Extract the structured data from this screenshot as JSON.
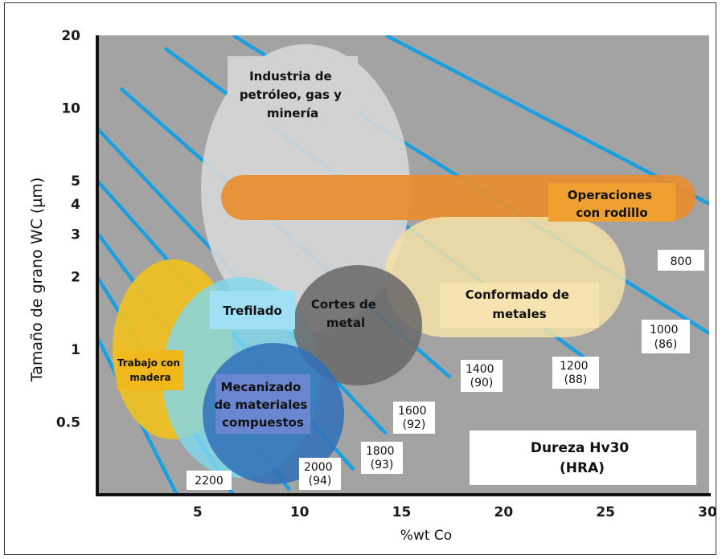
{
  "chart_data": {
    "type": "scatter",
    "xlabel": "%wt Co",
    "ylabel": "Tamaño de grano WC (µm)",
    "y_scale": "log",
    "xlim": [
      0,
      30
    ],
    "ylim": [
      0.25,
      20
    ],
    "x_ticks": [
      "5",
      "10",
      "15",
      "20",
      "25",
      "30"
    ],
    "x_tick_values": [
      5,
      10,
      15,
      20,
      25,
      30
    ],
    "y_ticks": [
      "20",
      "10",
      "5",
      "4",
      "3",
      "2",
      "1",
      "0.5"
    ],
    "y_tick_values": [
      20,
      10,
      5,
      4,
      3,
      2,
      1,
      0.5
    ],
    "legend_lines": [
      "Dureza Hv30",
      "(HRA)"
    ],
    "regions": [
      {
        "label_lines": [
          "Industria de",
          "petróleo, gas y",
          "minería"
        ],
        "color": "#d8d8d8"
      },
      {
        "label_lines": [
          "Operaciones",
          "con rodillo"
        ],
        "color": "#f0a030"
      },
      {
        "label_lines": [
          "Conformado de",
          "metales"
        ],
        "color": "#f4e0a8"
      },
      {
        "label_lines": [
          "Trefilado"
        ],
        "color": "#7fd8f0"
      },
      {
        "label_lines": [
          "Cortes de",
          "metal"
        ],
        "color": "#6a6a6a"
      },
      {
        "label_lines": [
          "Trabajo con",
          "madera"
        ],
        "color": "#f0c020"
      },
      {
        "label_lines": [
          "Mecanizado",
          "de materiales",
          "compuestos"
        ],
        "color": "#3070b8"
      }
    ],
    "hardness_isolines": [
      {
        "lines": [
          "800"
        ]
      },
      {
        "lines": [
          "1000",
          "(86)"
        ]
      },
      {
        "lines": [
          "1200",
          "(88)"
        ]
      },
      {
        "lines": [
          "1400",
          "(90)"
        ]
      },
      {
        "lines": [
          "1600",
          "(92)"
        ]
      },
      {
        "lines": [
          "1800",
          "(93)"
        ]
      },
      {
        "lines": [
          "2000",
          "(94)"
        ]
      },
      {
        "lines": [
          "2200"
        ]
      }
    ],
    "colors": {
      "plot_background": "#a3a3a3",
      "isoline": "#1aa0e0"
    }
  }
}
